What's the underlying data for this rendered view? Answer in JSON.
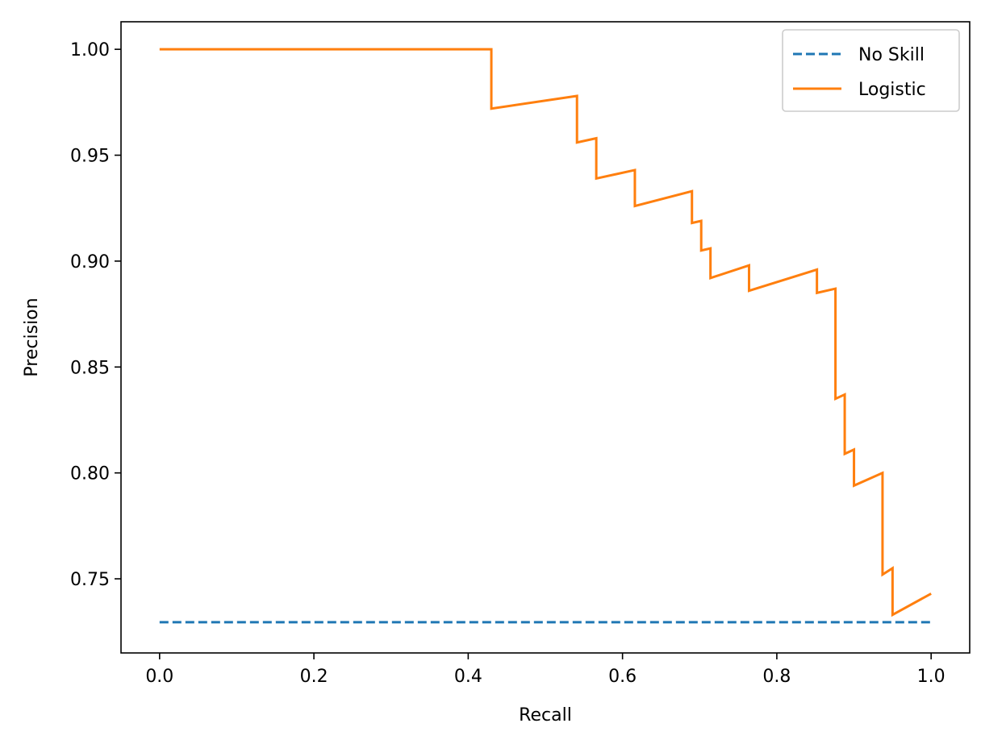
{
  "chart_data": {
    "type": "line",
    "xlabel": "Recall",
    "ylabel": "Precision",
    "xlim": [
      -0.05,
      1.05
    ],
    "ylim": [
      0.715,
      1.013
    ],
    "x_ticks": [
      "0.0",
      "0.2",
      "0.4",
      "0.6",
      "0.8",
      "1.0"
    ],
    "y_ticks": [
      "0.75",
      "0.80",
      "0.85",
      "0.90",
      "0.95",
      "1.00"
    ],
    "grid": false,
    "legend_position": "top-right",
    "series": [
      {
        "name": "No Skill",
        "style": "dashed",
        "color": "#1f77b4",
        "x": [
          0.0,
          1.0
        ],
        "y": [
          0.7295,
          0.7295
        ]
      },
      {
        "name": "Logistic",
        "style": "solid",
        "color": "#ff7f0e",
        "x": [
          0.0,
          0.43,
          0.43,
          0.541,
          0.541,
          0.566,
          0.566,
          0.616,
          0.616,
          0.69,
          0.69,
          0.702,
          0.702,
          0.714,
          0.714,
          0.764,
          0.764,
          0.852,
          0.852,
          0.876,
          0.876,
          0.888,
          0.888,
          0.9,
          0.9,
          0.937,
          0.937,
          0.95,
          0.95,
          1.0
        ],
        "y": [
          1.0,
          1.0,
          0.972,
          0.978,
          0.956,
          0.958,
          0.939,
          0.943,
          0.926,
          0.933,
          0.918,
          0.919,
          0.905,
          0.906,
          0.892,
          0.898,
          0.886,
          0.896,
          0.885,
          0.887,
          0.835,
          0.837,
          0.809,
          0.811,
          0.794,
          0.8,
          0.752,
          0.755,
          0.733,
          0.743
        ]
      }
    ]
  }
}
